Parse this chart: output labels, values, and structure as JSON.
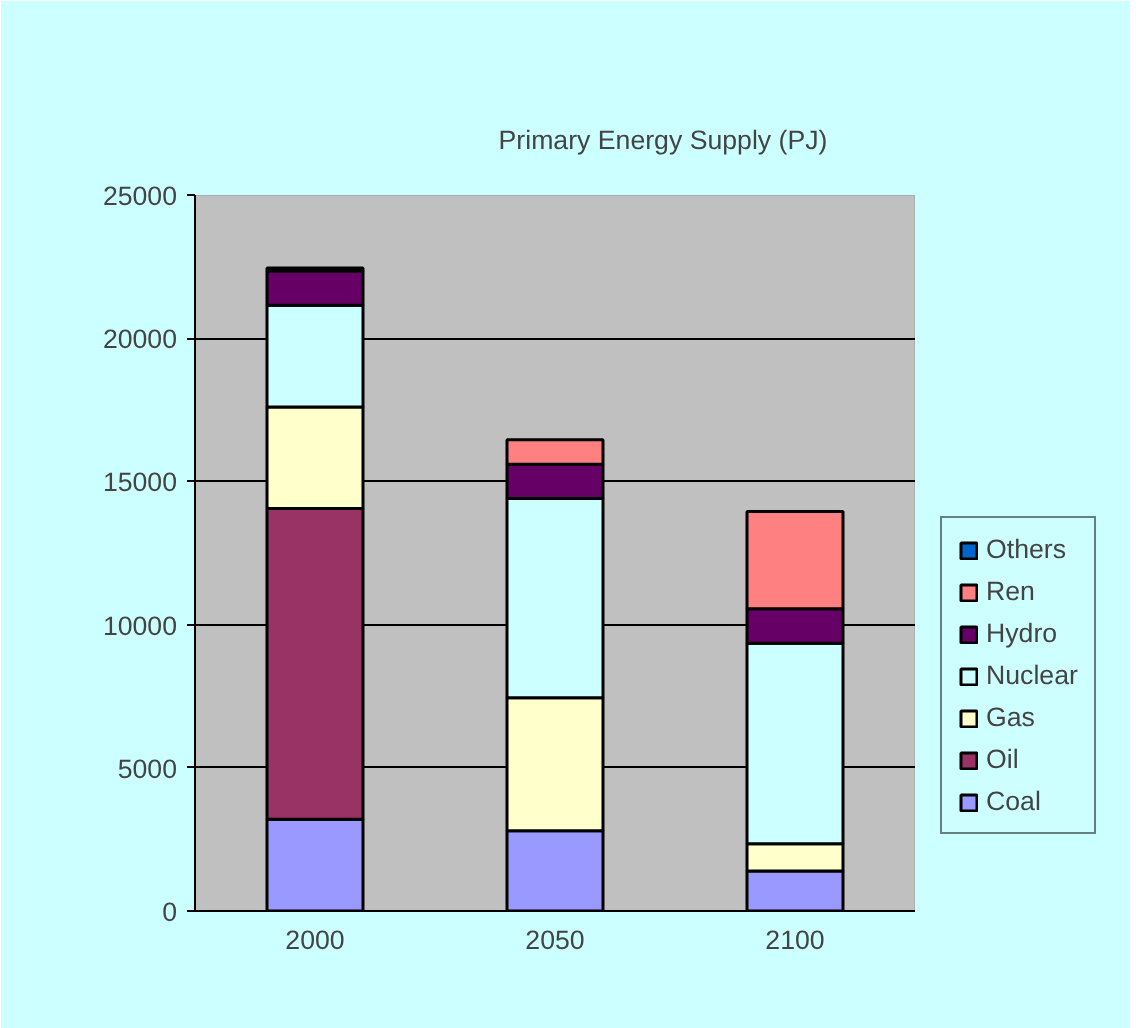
{
  "chart_data": {
    "type": "bar",
    "title": "Primary Energy Supply (PJ)",
    "stacked": true,
    "categories": [
      "2000",
      "2050",
      "2100"
    ],
    "series": [
      {
        "name": "Coal",
        "color": "#9999ff",
        "values": [
          3200,
          2800,
          1400
        ]
      },
      {
        "name": "Oil",
        "color": "#993366",
        "values": [
          10850,
          0,
          0
        ]
      },
      {
        "name": "Gas",
        "color": "#ffffcc",
        "values": [
          3550,
          4650,
          950
        ]
      },
      {
        "name": "Nuclear",
        "color": "#ccffff",
        "values": [
          3550,
          6950,
          7000
        ]
      },
      {
        "name": "Hydro",
        "color": "#660066",
        "values": [
          1200,
          1200,
          1200
        ]
      },
      {
        "name": "Ren",
        "color": "#ff8080",
        "values": [
          0,
          850,
          3400
        ]
      },
      {
        "name": "Others",
        "color": "#0066cc",
        "values": [
          100,
          0,
          0
        ]
      }
    ],
    "ylim": [
      0,
      25000
    ],
    "yticks": [
      0,
      5000,
      10000,
      15000,
      20000,
      25000
    ],
    "grid": "y",
    "legend": "right"
  }
}
